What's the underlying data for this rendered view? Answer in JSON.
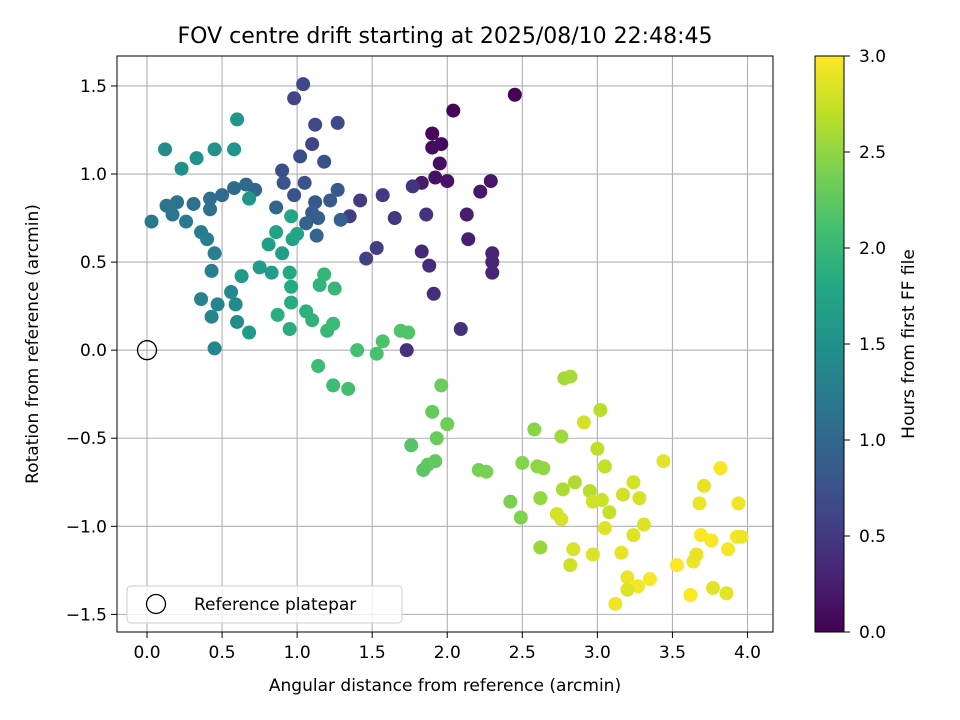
{
  "chart_data": {
    "type": "scatter",
    "title": "FOV centre drift starting at 2025/08/10 22:48:45",
    "xlabel": "Angular distance from reference (arcmin)",
    "ylabel": "Rotation from reference (arcmin)",
    "xlim": [
      -0.2,
      4.17
    ],
    "ylim": [
      -1.6,
      1.67
    ],
    "xticks": [
      0.0,
      0.5,
      1.0,
      1.5,
      2.0,
      2.5,
      3.0,
      3.5,
      4.0
    ],
    "xtick_labels": [
      "0.0",
      "0.5",
      "1.0",
      "1.5",
      "2.0",
      "2.5",
      "3.0",
      "3.5",
      "4.0"
    ],
    "yticks": [
      -1.5,
      -1.0,
      -0.5,
      0.0,
      0.5,
      1.0,
      1.5
    ],
    "ytick_labels": [
      "−1.5",
      "−1.0",
      "−0.5",
      "0.0",
      "0.5",
      "1.0",
      "1.5"
    ],
    "grid": true,
    "colormap": "viridis",
    "colorbar": {
      "label": "Hours from first FF file",
      "range": [
        0.0,
        3.0
      ],
      "ticks": [
        0.0,
        0.5,
        1.0,
        1.5,
        2.0,
        2.5,
        3.0
      ],
      "tick_labels": [
        "0.0",
        "0.5",
        "1.0",
        "1.5",
        "2.0",
        "2.5",
        "3.0"
      ]
    },
    "reference": {
      "x": 0.0,
      "y": 0.0,
      "marker": "hollow-circle"
    },
    "legend": {
      "position": "lower-left",
      "entries": [
        "Reference platepar"
      ]
    },
    "series": [
      {
        "points": [
          [
            2.45,
            1.45,
            0.02
          ],
          [
            2.04,
            1.36,
            0.04
          ],
          [
            1.9,
            1.23,
            0.06
          ],
          [
            1.96,
            1.17,
            0.08
          ],
          [
            1.9,
            1.15,
            0.1
          ],
          [
            1.95,
            1.06,
            0.12
          ],
          [
            1.92,
            0.98,
            0.14
          ],
          [
            2.0,
            0.96,
            0.16
          ],
          [
            2.29,
            0.96,
            0.18
          ],
          [
            2.22,
            0.9,
            0.2
          ],
          [
            1.83,
            0.95,
            0.22
          ],
          [
            2.13,
            0.77,
            0.24
          ],
          [
            2.14,
            0.63,
            0.26
          ],
          [
            2.3,
            0.55,
            0.28
          ],
          [
            2.3,
            0.5,
            0.3
          ],
          [
            2.3,
            0.44,
            0.32
          ],
          [
            1.83,
            0.56,
            0.34
          ],
          [
            1.88,
            0.48,
            0.36
          ],
          [
            1.91,
            0.32,
            0.38
          ],
          [
            2.09,
            0.12,
            0.4
          ],
          [
            1.73,
            0.0,
            0.42
          ],
          [
            1.86,
            0.77,
            0.44
          ],
          [
            1.77,
            0.93,
            0.46
          ],
          [
            1.65,
            0.75,
            0.48
          ],
          [
            1.57,
            0.88,
            0.5
          ],
          [
            1.42,
            0.85,
            0.52
          ],
          [
            1.35,
            0.76,
            0.54
          ],
          [
            1.53,
            0.58,
            0.56
          ],
          [
            1.46,
            0.52,
            0.58
          ],
          [
            1.1,
            1.17,
            0.6
          ],
          [
            0.98,
            1.43,
            0.62
          ],
          [
            1.04,
            1.51,
            0.64
          ],
          [
            1.12,
            1.28,
            0.66
          ],
          [
            1.27,
            1.29,
            0.68
          ],
          [
            1.02,
            1.1,
            0.7
          ],
          [
            0.9,
            1.02,
            0.72
          ],
          [
            1.18,
            1.07,
            0.74
          ],
          [
            1.05,
            0.95,
            0.76
          ],
          [
            0.98,
            0.88,
            0.78
          ],
          [
            0.91,
            0.95,
            0.8
          ],
          [
            1.12,
            0.84,
            0.82
          ],
          [
            1.27,
            0.91,
            0.84
          ],
          [
            1.22,
            0.85,
            0.86
          ],
          [
            1.1,
            0.78,
            0.88
          ],
          [
            1.14,
            0.75,
            0.9
          ],
          [
            1.29,
            0.74,
            0.92
          ],
          [
            1.06,
            0.72,
            0.94
          ],
          [
            1.13,
            0.65,
            0.96
          ],
          [
            0.86,
            0.81,
            0.98
          ],
          [
            0.72,
            0.91,
            1.0
          ],
          [
            0.66,
            0.94,
            1.02
          ],
          [
            0.58,
            0.92,
            1.04
          ],
          [
            0.5,
            0.88,
            1.06
          ],
          [
            0.42,
            0.86,
            1.08
          ],
          [
            0.42,
            0.8,
            1.1
          ],
          [
            0.31,
            0.83,
            1.12
          ],
          [
            0.2,
            0.84,
            1.14
          ],
          [
            0.13,
            0.82,
            1.16
          ],
          [
            0.17,
            0.77,
            1.18
          ],
          [
            0.03,
            0.73,
            1.2
          ],
          [
            0.26,
            0.73,
            1.22
          ],
          [
            0.36,
            0.67,
            1.24
          ],
          [
            0.4,
            0.63,
            1.26
          ],
          [
            0.45,
            0.55,
            1.28
          ],
          [
            0.43,
            0.45,
            1.3
          ],
          [
            0.36,
            0.29,
            1.32
          ],
          [
            0.43,
            0.19,
            1.34
          ],
          [
            0.47,
            0.26,
            1.36
          ],
          [
            0.45,
            0.01,
            1.38
          ],
          [
            0.56,
            0.33,
            1.4
          ],
          [
            0.59,
            0.26,
            1.42
          ],
          [
            0.6,
            0.16,
            1.44
          ],
          [
            0.12,
            1.14,
            1.46
          ],
          [
            0.23,
            1.03,
            1.48
          ],
          [
            0.33,
            1.09,
            1.5
          ],
          [
            0.45,
            1.14,
            1.52
          ],
          [
            0.58,
            1.14,
            1.54
          ],
          [
            0.6,
            1.31,
            1.56
          ],
          [
            0.68,
            0.86,
            1.58
          ],
          [
            0.63,
            0.42,
            1.6
          ],
          [
            0.68,
            0.1,
            1.62
          ],
          [
            0.75,
            0.47,
            1.64
          ],
          [
            0.83,
            0.44,
            1.66
          ],
          [
            0.81,
            0.6,
            1.68
          ],
          [
            0.9,
            0.55,
            1.7
          ],
          [
            0.86,
            0.67,
            1.72
          ],
          [
            0.97,
            0.63,
            1.74
          ],
          [
            1.0,
            0.66,
            1.76
          ],
          [
            0.96,
            0.76,
            1.78
          ],
          [
            0.95,
            0.44,
            1.8
          ],
          [
            0.96,
            0.36,
            1.82
          ],
          [
            0.96,
            0.27,
            1.84
          ],
          [
            0.95,
            0.12,
            1.86
          ],
          [
            0.87,
            0.2,
            1.88
          ],
          [
            1.06,
            0.22,
            1.9
          ],
          [
            1.1,
            0.17,
            1.92
          ],
          [
            1.15,
            0.37,
            1.94
          ],
          [
            1.18,
            0.43,
            1.96
          ],
          [
            1.25,
            0.35,
            1.98
          ],
          [
            1.2,
            0.11,
            2.0
          ],
          [
            1.24,
            0.15,
            2.02
          ],
          [
            1.14,
            -0.09,
            2.04
          ],
          [
            1.24,
            -0.2,
            2.06
          ],
          [
            1.34,
            -0.22,
            2.08
          ],
          [
            1.4,
            0.0,
            2.1
          ],
          [
            1.53,
            -0.02,
            2.12
          ],
          [
            1.57,
            0.05,
            2.14
          ],
          [
            1.69,
            0.11,
            2.16
          ],
          [
            1.74,
            0.1,
            2.18
          ],
          [
            1.76,
            -0.54,
            2.2
          ],
          [
            1.84,
            -0.68,
            2.22
          ],
          [
            1.87,
            -0.65,
            2.24
          ],
          [
            1.92,
            -0.63,
            2.26
          ],
          [
            1.9,
            -0.35,
            2.28
          ],
          [
            1.93,
            -0.5,
            2.3
          ],
          [
            1.96,
            -0.2,
            2.32
          ],
          [
            2.0,
            -0.42,
            2.34
          ],
          [
            2.21,
            -0.68,
            2.36
          ],
          [
            2.26,
            -0.69,
            2.38
          ],
          [
            2.42,
            -0.86,
            2.4
          ],
          [
            2.49,
            -0.95,
            2.42
          ],
          [
            2.5,
            -0.64,
            2.44
          ],
          [
            2.58,
            -0.45,
            2.46
          ],
          [
            2.6,
            -0.66,
            2.48
          ],
          [
            2.64,
            -0.67,
            2.5
          ],
          [
            2.62,
            -0.84,
            2.52
          ],
          [
            2.62,
            -1.12,
            2.54
          ],
          [
            2.76,
            -0.49,
            2.56
          ],
          [
            2.78,
            -0.16,
            2.58
          ],
          [
            2.82,
            -0.15,
            2.6
          ],
          [
            2.77,
            -0.79,
            2.62
          ],
          [
            2.85,
            -0.75,
            2.64
          ],
          [
            2.95,
            -0.8,
            2.66
          ],
          [
            3.02,
            -0.34,
            2.68
          ],
          [
            3.0,
            -0.56,
            2.7
          ],
          [
            3.05,
            -0.66,
            2.72
          ],
          [
            3.08,
            -0.92,
            2.74
          ],
          [
            3.03,
            -0.85,
            2.76
          ],
          [
            3.17,
            -0.82,
            2.78
          ],
          [
            3.24,
            -0.75,
            2.8
          ],
          [
            3.28,
            -0.84,
            2.82
          ],
          [
            3.31,
            -0.99,
            2.84
          ],
          [
            3.24,
            -1.05,
            2.86
          ],
          [
            3.44,
            -0.63,
            2.88
          ],
          [
            3.16,
            -1.15,
            2.9
          ],
          [
            3.2,
            -1.29,
            2.92
          ],
          [
            3.12,
            -1.44,
            2.94
          ],
          [
            3.27,
            -1.34,
            2.96
          ],
          [
            3.35,
            -1.3,
            2.98
          ],
          [
            3.53,
            -1.22,
            3.0
          ],
          [
            3.62,
            -1.39,
            3.0
          ],
          [
            3.69,
            -1.05,
            2.99
          ],
          [
            3.76,
            -1.08,
            2.98
          ],
          [
            3.82,
            -0.67,
            2.97
          ],
          [
            3.87,
            -1.13,
            2.96
          ],
          [
            3.93,
            -1.06,
            2.95
          ],
          [
            3.96,
            -1.06,
            2.94
          ],
          [
            3.94,
            -0.87,
            2.93
          ],
          [
            3.64,
            -1.2,
            2.92
          ],
          [
            3.68,
            -0.87,
            2.91
          ],
          [
            3.66,
            -1.16,
            2.9
          ],
          [
            3.71,
            -0.77,
            2.89
          ],
          [
            3.86,
            -1.38,
            2.88
          ],
          [
            3.77,
            -1.35,
            2.87
          ],
          [
            3.2,
            -1.36,
            2.86
          ],
          [
            3.05,
            -1.01,
            2.85
          ],
          [
            2.97,
            -1.16,
            2.84
          ],
          [
            2.84,
            -1.13,
            2.83
          ],
          [
            2.76,
            -0.96,
            2.82
          ],
          [
            2.73,
            -0.93,
            2.81
          ],
          [
            2.91,
            -0.41,
            2.8
          ],
          [
            2.97,
            -0.86,
            2.79
          ],
          [
            2.82,
            -1.22,
            2.78
          ]
        ]
      }
    ]
  }
}
